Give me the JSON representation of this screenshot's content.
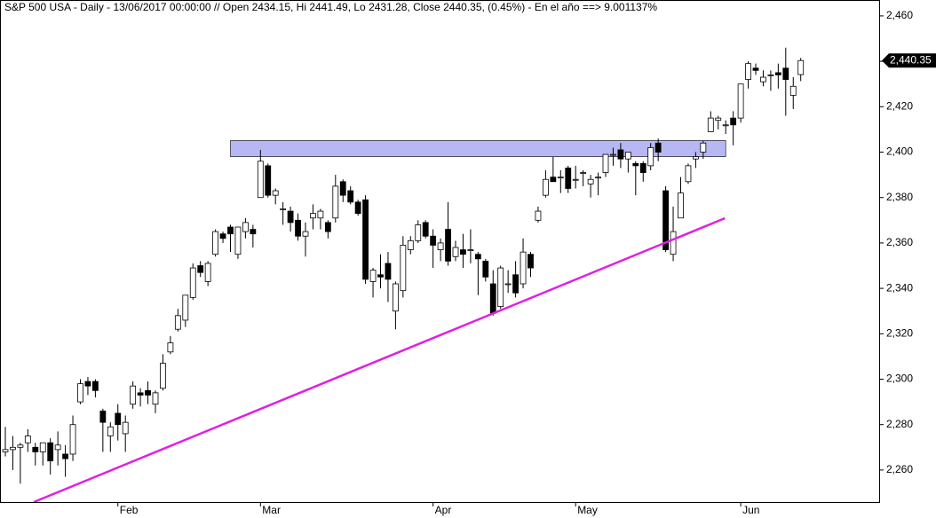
{
  "chart_data": {
    "type": "candlestick",
    "title": "S&P 500 USA - Daily - 13/06/2017 00:00:00 // Open 2434.15, Hi 2441.49, Lo 2431.28, Close 2440.35, (0.45%) - En el año ==> 9.001137%",
    "categories": [
      null,
      null,
      null,
      null,
      null,
      null,
      null,
      null,
      null,
      null,
      null,
      null,
      null,
      null,
      null,
      "Feb",
      null,
      null,
      null,
      null,
      null,
      null,
      null,
      null,
      null,
      null,
      null,
      null,
      null,
      null,
      null,
      null,
      null,
      null,
      "Mar",
      null,
      null,
      null,
      null,
      null,
      null,
      null,
      null,
      null,
      null,
      null,
      null,
      null,
      null,
      null,
      null,
      null,
      null,
      null,
      null,
      null,
      null,
      "Apr",
      null,
      null,
      null,
      null,
      null,
      null,
      null,
      null,
      null,
      null,
      null,
      null,
      null,
      null,
      null,
      null,
      null,
      null,
      "May",
      null,
      null,
      null,
      null,
      null,
      null,
      null,
      null,
      null,
      null,
      null,
      null,
      null,
      null,
      null,
      null,
      null,
      null,
      null,
      null,
      null,
      "Jun",
      null,
      null,
      null,
      null,
      null,
      null,
      null,
      null
    ],
    "open": [
      2268,
      2269,
      2270,
      2272,
      2270,
      2268,
      2272,
      2269,
      2267,
      2267,
      2290,
      2299,
      2299,
      2286,
      2275,
      2285,
      2276,
      2289,
      2294,
      2295,
      2289,
      2296,
      2312,
      2322,
      2326,
      2336,
      2350,
      2343,
      2355,
      2364,
      2367,
      2355,
      2365,
      2366,
      2380,
      2394,
      2381,
      2375,
      2374,
      2370,
      2363,
      2371,
      2371,
      2369,
      2371,
      2387,
      2383,
      2378,
      2379,
      2343,
      2346,
      2351,
      2330,
      2339,
      2357,
      2361,
      2369,
      2363,
      2357,
      2366,
      2354,
      2357,
      2357,
      2355,
      2352,
      2342,
      2332,
      2342,
      2346,
      2342,
      2355,
      2370,
      2381,
      2389,
      2389,
      2393,
      2388,
      2391,
      2386,
      2389,
      2391,
      2399,
      2401,
      2397,
      2395,
      2395,
      2394,
      2404,
      2383,
      2355,
      2371,
      2387,
      2397,
      2400,
      2409,
      2414,
      2412,
      2415,
      2415,
      2432,
      2437,
      2431,
      2434,
      2435,
      2437,
      2425,
      2434.15
    ],
    "high": [
      2279,
      2275,
      2272,
      2278,
      2272,
      2272,
      2274,
      2277,
      2271,
      2284,
      2300,
      2301,
      2300,
      2287,
      2281,
      2289,
      2284,
      2299,
      2296,
      2299,
      2295,
      2311,
      2319,
      2331,
      2337,
      2351,
      2352,
      2352,
      2366,
      2365,
      2368,
      2367,
      2371,
      2368,
      2401,
      2395,
      2384,
      2378,
      2376,
      2373,
      2369,
      2377,
      2375,
      2370,
      2390,
      2388,
      2385,
      2379,
      2381,
      2349,
      2355,
      2356,
      2343,
      2363,
      2363,
      2370,
      2370,
      2366,
      2362,
      2378,
      2361,
      2364,
      2366,
      2356,
      2353,
      2348,
      2350,
      2348,
      2352,
      2362,
      2356,
      2376,
      2392,
      2398,
      2392,
      2394,
      2394,
      2392,
      2390,
      2391,
      2399,
      2402,
      2404,
      2400,
      2396,
      2396,
      2404,
      2406,
      2385,
      2376,
      2389,
      2395,
      2400,
      2405,
      2418,
      2416,
      2414,
      2418,
      2430,
      2440,
      2439,
      2436,
      2436,
      2439,
      2446,
      2433,
      2441.49
    ],
    "low": [
      2266,
      2260,
      2254,
      2268,
      2262,
      2262,
      2258,
      2262,
      2257,
      2264,
      2289,
      2293,
      2292,
      2268,
      2268,
      2273,
      2268,
      2287,
      2288,
      2289,
      2285,
      2295,
      2311,
      2321,
      2323,
      2335,
      2345,
      2341,
      2354,
      2360,
      2356,
      2353,
      2362,
      2358,
      2380,
      2380,
      2377,
      2368,
      2365,
      2361,
      2354,
      2366,
      2366,
      2362,
      2369,
      2378,
      2377,
      2372,
      2342,
      2336,
      2340,
      2334,
      2322,
      2336,
      2355,
      2360,
      2362,
      2349,
      2352,
      2350,
      2352,
      2349,
      2351,
      2337,
      2343,
      2328,
      2331,
      2338,
      2336,
      2340,
      2345,
      2369,
      2380,
      2387,
      2382,
      2382,
      2384,
      2385,
      2380,
      2381,
      2389,
      2394,
      2393,
      2391,
      2381,
      2387,
      2392,
      2396,
      2356,
      2352,
      2371,
      2386,
      2393,
      2397,
      2409,
      2410,
      2408,
      2403,
      2413,
      2428,
      2434,
      2429,
      2427,
      2428,
      2416,
      2419,
      2431.28
    ],
    "close": [
      2269,
      2270,
      2271,
      2275,
      2268,
      2272,
      2264,
      2271,
      2265,
      2280,
      2298,
      2297,
      2295,
      2281,
      2279,
      2280,
      2281,
      2297,
      2293,
      2293,
      2294,
      2307,
      2316,
      2328,
      2337,
      2349,
      2347,
      2351,
      2365,
      2362,
      2364,
      2367,
      2369,
      2364,
      2396,
      2381,
      2383,
      2375,
      2369,
      2363,
      2365,
      2373,
      2374,
      2365,
      2385,
      2381,
      2378,
      2373,
      2344,
      2348,
      2345,
      2344,
      2342,
      2359,
      2361,
      2368,
      2363,
      2359,
      2360,
      2352,
      2358,
      2355,
      2357,
      2353,
      2345,
      2329,
      2349,
      2342,
      2338,
      2356,
      2349,
      2374,
      2388,
      2387,
      2389,
      2384,
      2388,
      2391,
      2388,
      2389,
      2399,
      2399,
      2397,
      2400,
      2394,
      2391,
      2402,
      2400,
      2357,
      2365,
      2382,
      2394,
      2398,
      2404,
      2415,
      2415,
      2412,
      2412,
      2430,
      2439,
      2436,
      2433,
      2434,
      2434,
      2432,
      2429,
      2440.35
    ],
    "ylim": [
      2245.9,
      2467
    ],
    "yticks": [
      {
        "value": 2260,
        "label": "2,260"
      },
      {
        "value": 2280,
        "label": "2,280"
      },
      {
        "value": 2300,
        "label": "2,300"
      },
      {
        "value": 2320,
        "label": "2,320"
      },
      {
        "value": 2340,
        "label": "2,340"
      },
      {
        "value": 2360,
        "label": "2,360"
      },
      {
        "value": 2380,
        "label": "2,380"
      },
      {
        "value": 2400,
        "label": "2,400"
      },
      {
        "value": 2420,
        "label": "2,420"
      },
      {
        "value": 2440,
        "label": "2,440"
      },
      {
        "value": 2460,
        "label": "2,460"
      }
    ],
    "last_price": {
      "value": 2440.35,
      "label": "2,440.35"
    },
    "resistance_zone": {
      "x": [
        30,
        96
      ],
      "y": [
        2398,
        2405.1
      ],
      "color": "#9999ee"
    },
    "trendline": {
      "x": [
        3.8,
        95.9
      ],
      "y": [
        2245.9,
        2370.9
      ],
      "color": "#e020e0"
    },
    "up_color": "#ffffff",
    "down_color": "#000000"
  }
}
